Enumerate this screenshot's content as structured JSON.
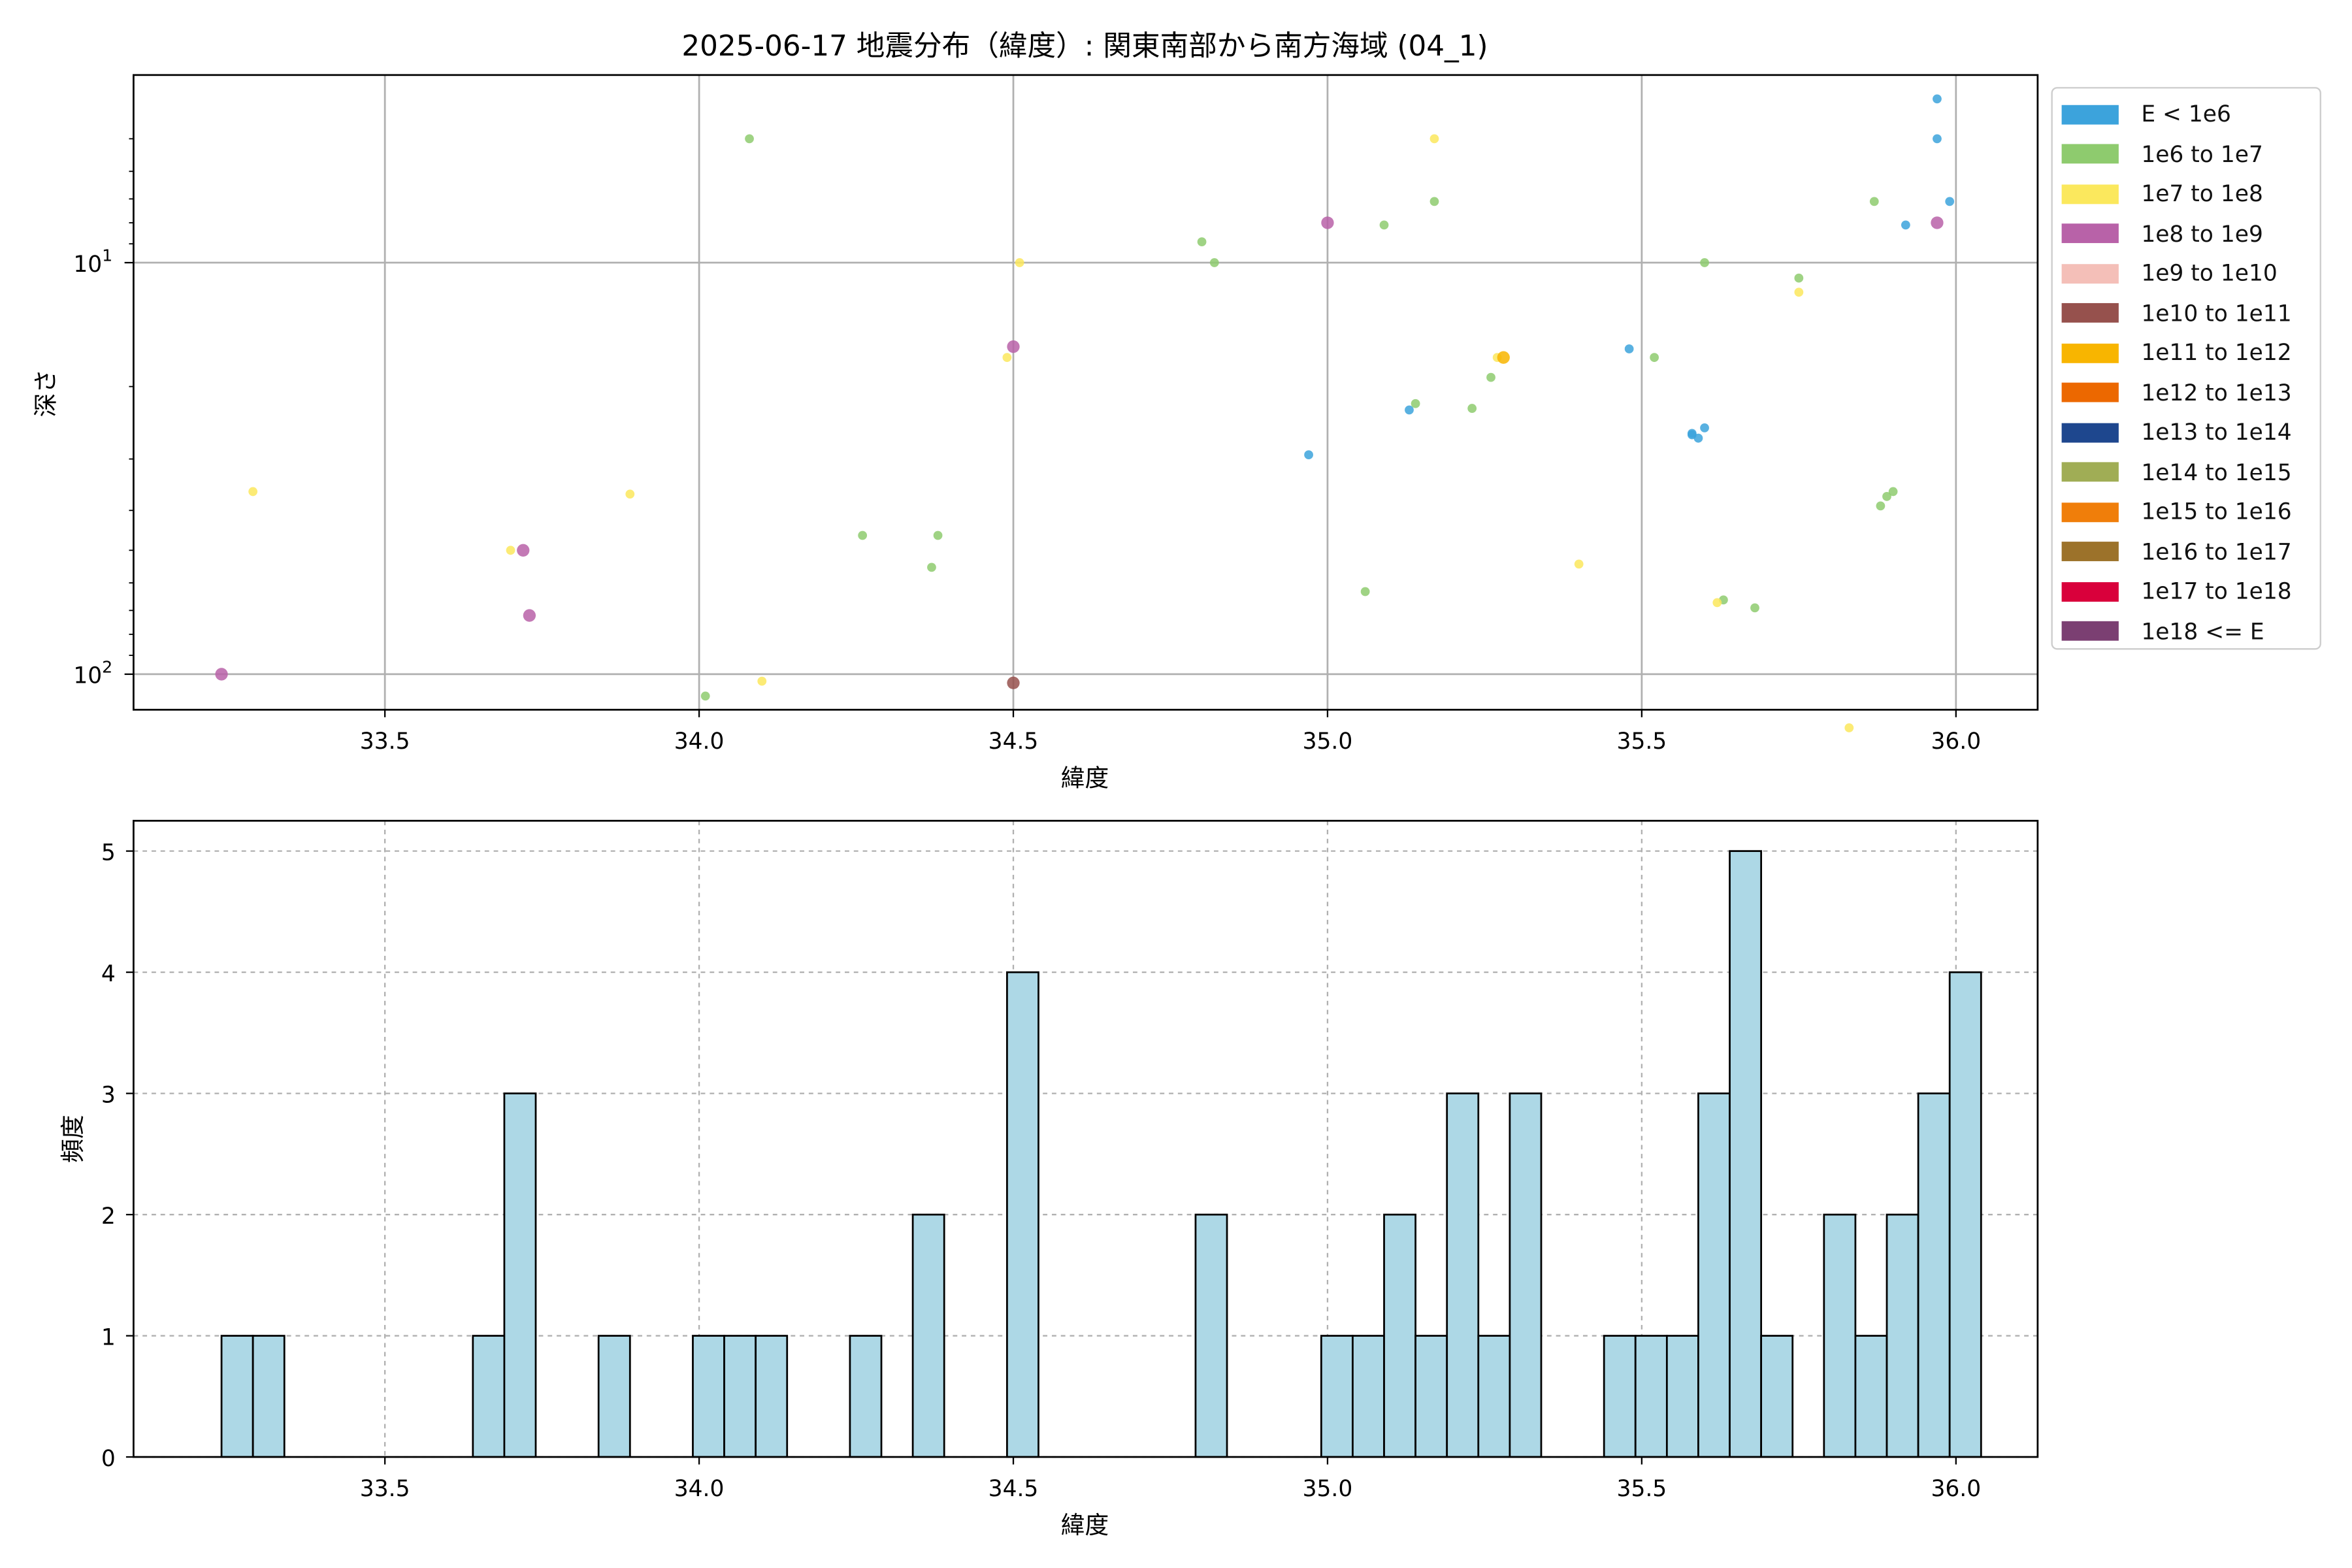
{
  "chart_data": [
    {
      "type": "scatter",
      "title": "2025-06-17 地震分布（緯度）: 関東南部から南方海域 (04_1)",
      "xlabel": "緯度",
      "ylabel": "深さ",
      "xlim": [
        33.1,
        36.13
      ],
      "ylim": [
        122,
        3.5
      ],
      "yscale": "log",
      "y_inverted": true,
      "grid": true,
      "legend_position": "outside-right",
      "x_ticks": [
        "33.5",
        "34.0",
        "34.5",
        "35.0",
        "35.5",
        "36.0"
      ],
      "y_ticks": [
        {
          "value": 10,
          "base": "10",
          "exp": "1"
        },
        {
          "value": 100,
          "base": "10",
          "exp": "2"
        }
      ],
      "legend": [
        {
          "label": "E < 1e6",
          "color": "#3ca3dc"
        },
        {
          "label": "1e6 to 1e7",
          "color": "#8ecb6e"
        },
        {
          "label": "1e7 to 1e8",
          "color": "#fbe85d"
        },
        {
          "label": "1e8 to 1e9",
          "color": "#b862a8"
        },
        {
          "label": "1e9 to 1e10",
          "color": "#f4bfb8"
        },
        {
          "label": "1e10 to 1e11",
          "color": "#96514d"
        },
        {
          "label": "1e11 to 1e12",
          "color": "#f8b500"
        },
        {
          "label": "1e12 to 1e13",
          "color": "#ec6800"
        },
        {
          "label": "1e13 to 1e14",
          "color": "#1e478e"
        },
        {
          "label": "1e14 to 1e15",
          "color": "#a0ad55"
        },
        {
          "label": "1e15 to 1e16",
          "color": "#f07e0a"
        },
        {
          "label": "1e16 to 1e17",
          "color": "#9c722a"
        },
        {
          "label": "1e17 to 1e18",
          "color": "#d9003b"
        },
        {
          "label": "1e18 <= E",
          "color": "#7b3f72"
        }
      ],
      "series": [
        {
          "class": 0,
          "points": [
            [
              35.97,
              4.0
            ],
            [
              35.97,
              5.0
            ],
            [
              35.99,
              7.1
            ],
            [
              35.92,
              8.1
            ],
            [
              35.48,
              16.2
            ],
            [
              35.13,
              22.8
            ],
            [
              34.97,
              29.3
            ],
            [
              35.58,
              26.0
            ],
            [
              35.59,
              26.7
            ],
            [
              35.6,
              25.2
            ],
            [
              35.58,
              26.2
            ]
          ]
        },
        {
          "class": 1,
          "points": [
            [
              34.08,
              5.0
            ],
            [
              35.17,
              7.1
            ],
            [
              35.09,
              8.1
            ],
            [
              35.87,
              7.1
            ],
            [
              34.8,
              8.9
            ],
            [
              34.82,
              10.0
            ],
            [
              35.6,
              10.0
            ],
            [
              35.75,
              10.9
            ],
            [
              35.52,
              17.0
            ],
            [
              35.26,
              19.0
            ],
            [
              35.14,
              22.0
            ],
            [
              35.23,
              22.6
            ],
            [
              34.26,
              46.0
            ],
            [
              34.38,
              46.0
            ],
            [
              34.37,
              55.0
            ],
            [
              35.06,
              63.0
            ],
            [
              35.63,
              66.0
            ],
            [
              35.68,
              69.0
            ],
            [
              35.88,
              39.0
            ],
            [
              35.89,
              37.0
            ],
            [
              35.9,
              36.0
            ],
            [
              34.01,
              113.0
            ]
          ]
        },
        {
          "class": 2,
          "points": [
            [
              35.17,
              5.0
            ],
            [
              34.51,
              10.0
            ],
            [
              35.75,
              11.8
            ],
            [
              34.49,
              17.0
            ],
            [
              35.27,
              17.0
            ],
            [
              33.29,
              36.0
            ],
            [
              33.89,
              36.5
            ],
            [
              33.7,
              50.0
            ],
            [
              35.4,
              54.0
            ],
            [
              35.62,
              67.0
            ],
            [
              34.1,
              104.0
            ],
            [
              35.83,
              135.0
            ]
          ]
        },
        {
          "class": 3,
          "points": [
            [
              35.0,
              8.0
            ],
            [
              35.97,
              8.0
            ],
            [
              34.5,
              16.0
            ],
            [
              33.72,
              50.0
            ],
            [
              33.73,
              72.0
            ],
            [
              33.24,
              100.0
            ]
          ]
        },
        {
          "class": 5,
          "points": [
            [
              34.5,
              105.0
            ]
          ]
        },
        {
          "class": 6,
          "points": [
            [
              35.28,
              17.0
            ]
          ]
        }
      ]
    },
    {
      "type": "bar",
      "xlabel": "緯度",
      "ylabel": "頻度",
      "xlim": [
        33.1,
        36.13
      ],
      "ylim": [
        0,
        5.25
      ],
      "grid": true,
      "bar_color": "#add8e6",
      "edge_color": "#000000",
      "x_ticks": [
        "33.5",
        "34.0",
        "34.5",
        "35.0",
        "35.5",
        "36.0"
      ],
      "y_ticks": [
        "0",
        "1",
        "2",
        "3",
        "4",
        "5"
      ],
      "bin_start": 33.24,
      "bin_width": 0.05,
      "counts": [
        1,
        1,
        0,
        0,
        0,
        0,
        0,
        0,
        1,
        3,
        0,
        0,
        1,
        0,
        0,
        1,
        1,
        1,
        0,
        0,
        1,
        0,
        2,
        0,
        0,
        4,
        0,
        0,
        0,
        0,
        0,
        2,
        0,
        0,
        0,
        1,
        1,
        2,
        1,
        3,
        1,
        3,
        0,
        0,
        1,
        1,
        1,
        3,
        5,
        1,
        0,
        2,
        1,
        2,
        3,
        4
      ]
    }
  ]
}
